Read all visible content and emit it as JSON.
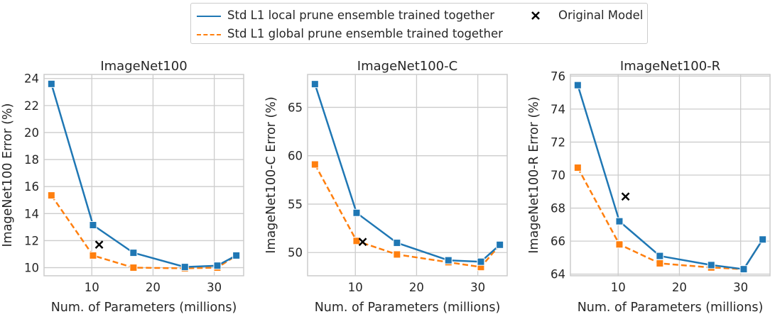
{
  "colors": {
    "local": "#1f77b4",
    "global": "#ff7f0e",
    "original": "#000000",
    "grid": "#cccccc",
    "text": "#262626"
  },
  "legend": {
    "placement": "top-center",
    "local_label": "Std L1 local prune ensemble trained together",
    "global_label": "Std L1 global prune ensemble trained together",
    "original_label": "Original Model"
  },
  "chart_data": [
    {
      "type": "line",
      "title": "ImageNet100",
      "xlabel": "Num. of Parameters (millions)",
      "ylabel": "ImageNet100 Error (%)",
      "xlim": [
        2.2,
        34.8
      ],
      "ylim": [
        9.4,
        24.3
      ],
      "xticks": [
        10,
        20,
        30
      ],
      "yticks": [
        10,
        12,
        14,
        16,
        18,
        20,
        22,
        24
      ],
      "grid": true,
      "x": [
        3.4,
        10.2,
        16.8,
        25.2,
        30.5,
        33.6
      ],
      "series": [
        {
          "name": "Std L1 local prune ensemble trained together",
          "style": "solid",
          "marker": "square",
          "values": [
            23.6,
            13.15,
            11.1,
            10.05,
            10.15,
            10.9
          ]
        },
        {
          "name": "Std L1 global prune ensemble trained together",
          "style": "dashed",
          "marker": "square",
          "values": [
            15.35,
            10.9,
            10.0,
            9.95,
            10.0,
            10.9
          ]
        }
      ],
      "original_model": {
        "name": "Original Model",
        "marker": "x",
        "x": 11.2,
        "y": 11.7
      }
    },
    {
      "type": "line",
      "title": "ImageNet100-C",
      "xlabel": "Num. of Parameters (millions)",
      "ylabel": "ImageNet100-C Error (%)",
      "xlim": [
        2.2,
        34.8
      ],
      "ylim": [
        47.6,
        68.4
      ],
      "xticks": [
        10,
        20,
        30
      ],
      "yticks": [
        50,
        55,
        60,
        65
      ],
      "grid": true,
      "x": [
        3.4,
        10.2,
        16.8,
        25.2,
        30.5,
        33.6
      ],
      "series": [
        {
          "name": "Std L1 local prune ensemble trained together",
          "style": "solid",
          "marker": "square",
          "values": [
            67.4,
            54.1,
            51.0,
            49.2,
            49.05,
            50.8
          ]
        },
        {
          "name": "Std L1 global prune ensemble trained together",
          "style": "dashed",
          "marker": "square",
          "values": [
            59.1,
            51.2,
            49.8,
            49.0,
            48.5,
            50.8
          ]
        }
      ],
      "original_model": {
        "name": "Original Model",
        "marker": "x",
        "x": 11.2,
        "y": 51.1
      }
    },
    {
      "type": "line",
      "title": "ImageNet100-R",
      "xlabel": "Num. of Parameters (millions)",
      "ylabel": "ImageNet100-R Error (%)",
      "xlim": [
        2.2,
        34.8
      ],
      "ylim": [
        63.9,
        76.1
      ],
      "xticks": [
        10,
        20,
        30
      ],
      "yticks": [
        64,
        66,
        68,
        70,
        72,
        74,
        76
      ],
      "grid": true,
      "x": [
        3.4,
        10.2,
        16.8,
        25.2,
        30.5,
        33.6
      ],
      "series": [
        {
          "name": "Std L1 local prune ensemble trained together",
          "style": "solid",
          "marker": "square",
          "values": [
            75.45,
            67.2,
            65.1,
            64.55,
            64.3,
            66.1
          ]
        },
        {
          "name": "Std L1 global prune ensemble trained together",
          "style": "dashed",
          "marker": "square",
          "values": [
            70.45,
            65.8,
            64.65,
            64.4,
            64.3,
            66.1
          ]
        }
      ],
      "original_model": {
        "name": "Original Model",
        "marker": "x",
        "x": 11.2,
        "y": 68.7
      }
    }
  ]
}
